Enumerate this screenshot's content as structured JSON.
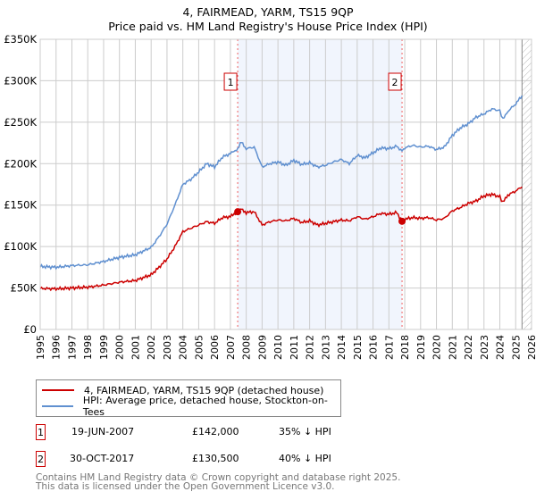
{
  "chart_data": {
    "type": "line",
    "title": "4, FAIRMEAD, YARM, TS15 9QP",
    "subtitle": "Price paid vs. HM Land Registry's House Price Index (HPI)",
    "xlim": [
      1995,
      2026
    ],
    "ylim": [
      0,
      350000
    ],
    "x_ticks": [
      "1995",
      "1996",
      "1997",
      "1998",
      "1999",
      "2000",
      "2001",
      "2002",
      "2003",
      "2004",
      "2005",
      "2006",
      "2007",
      "2008",
      "2009",
      "2010",
      "2011",
      "2012",
      "2013",
      "2014",
      "2015",
      "2016",
      "2017",
      "2018",
      "2019",
      "2020",
      "2021",
      "2022",
      "2023",
      "2024",
      "2025",
      "2026"
    ],
    "y_ticks": [
      {
        "v": 0,
        "label": "£0"
      },
      {
        "v": 50000,
        "label": "£50K"
      },
      {
        "v": 100000,
        "label": "£100K"
      },
      {
        "v": 150000,
        "label": "£150K"
      },
      {
        "v": 200000,
        "label": "£200K"
      },
      {
        "v": 250000,
        "label": "£250K"
      },
      {
        "v": 300000,
        "label": "£300K"
      },
      {
        "v": 350000,
        "label": "£350K"
      }
    ],
    "grid": true,
    "shaded_range": [
      2007.46,
      2017.83
    ],
    "hatched_from": 2025.4,
    "series": [
      {
        "name": "4, FAIRMEAD, YARM, TS15 9QP (detached house)",
        "color": "#cc0000",
        "x": [
          1995,
          1996,
          1997,
          1998,
          1999,
          2000,
          2001,
          2002,
          2002.5,
          2003,
          2003.5,
          2004,
          2004.5,
          2005,
          2005.5,
          2006,
          2006.5,
          2007,
          2007.46,
          2007.7,
          2008,
          2008.5,
          2009,
          2009.5,
          2010,
          2010.5,
          2011,
          2011.5,
          2012,
          2012.5,
          2013,
          2013.5,
          2014,
          2014.5,
          2015,
          2015.5,
          2016,
          2016.5,
          2017,
          2017.5,
          2017.83,
          2018,
          2018.5,
          2019,
          2019.5,
          2020,
          2020.5,
          2021,
          2021.5,
          2022,
          2022.5,
          2023,
          2023.5,
          2024,
          2024.2,
          2024.5,
          2025,
          2025.4
        ],
        "y": [
          49500,
          49000,
          50000,
          51000,
          53500,
          57000,
          59000,
          66000,
          75000,
          85000,
          100000,
          118000,
          122000,
          126000,
          130000,
          128000,
          135000,
          136000,
          142000,
          145000,
          141000,
          142000,
          126000,
          130000,
          132000,
          131000,
          134000,
          129000,
          131000,
          126000,
          128000,
          130000,
          132000,
          131000,
          136000,
          133000,
          136000,
          140000,
          139000,
          141000,
          130500,
          133000,
          135000,
          134000,
          135000,
          132000,
          134000,
          143000,
          147000,
          152000,
          155000,
          161000,
          163000,
          160000,
          153000,
          162000,
          167000,
          172000
        ]
      },
      {
        "name": "HPI: Average price, detached house, Stockton-on-Tees",
        "color": "#6090d0",
        "x": [
          1995,
          1996,
          1997,
          1998,
          1999,
          2000,
          2001,
          2002,
          2002.5,
          2003,
          2003.5,
          2004,
          2004.5,
          2005,
          2005.5,
          2006,
          2006.5,
          2007,
          2007.46,
          2007.7,
          2008,
          2008.5,
          2009,
          2009.5,
          2010,
          2010.5,
          2011,
          2011.5,
          2012,
          2012.5,
          2013,
          2013.5,
          2014,
          2014.5,
          2015,
          2015.5,
          2016,
          2016.5,
          2017,
          2017.5,
          2017.83,
          2018,
          2018.5,
          2019,
          2019.5,
          2020,
          2020.5,
          2021,
          2021.5,
          2022,
          2022.5,
          2023,
          2023.5,
          2024,
          2024.2,
          2024.5,
          2025,
          2025.4
        ],
        "y": [
          76000,
          75000,
          77000,
          78000,
          82000,
          87000,
          90000,
          99000,
          112000,
          127000,
          150000,
          175000,
          181000,
          190000,
          200000,
          196000,
          208000,
          212000,
          218000,
          226000,
          218000,
          220000,
          196000,
          200000,
          202000,
          198000,
          204000,
          199000,
          201000,
          196000,
          198000,
          202000,
          205000,
          200000,
          210000,
          207000,
          213000,
          219000,
          218000,
          221000,
          215000,
          219000,
          222000,
          220000,
          221000,
          217000,
          220000,
          234000,
          243000,
          248000,
          256000,
          260000,
          266000,
          264000,
          253000,
          263000,
          272000,
          282000
        ]
      }
    ],
    "markers": [
      {
        "label": "1",
        "x": 2007.46,
        "y": 142000
      },
      {
        "label": "2",
        "x": 2017.83,
        "y": 130500
      }
    ]
  },
  "title_line1": "4, FAIRMEAD, YARM, TS15 9QP",
  "title_line2": "Price paid vs. HM Land Registry's House Price Index (HPI)",
  "legend": {
    "red": "4, FAIRMEAD, YARM, TS15 9QP (detached house)",
    "blue": "HPI: Average price, detached house, Stockton-on-Tees"
  },
  "sales": [
    {
      "num": "1",
      "date": "19-JUN-2007",
      "price": "£142,000",
      "hpi": "35% ↓ HPI"
    },
    {
      "num": "2",
      "date": "30-OCT-2017",
      "price": "£130,500",
      "hpi": "40% ↓ HPI"
    }
  ],
  "footer": {
    "line1": "Contains HM Land Registry data © Crown copyright and database right 2025.",
    "line2": "This data is licensed under the Open Government Licence v3.0."
  }
}
